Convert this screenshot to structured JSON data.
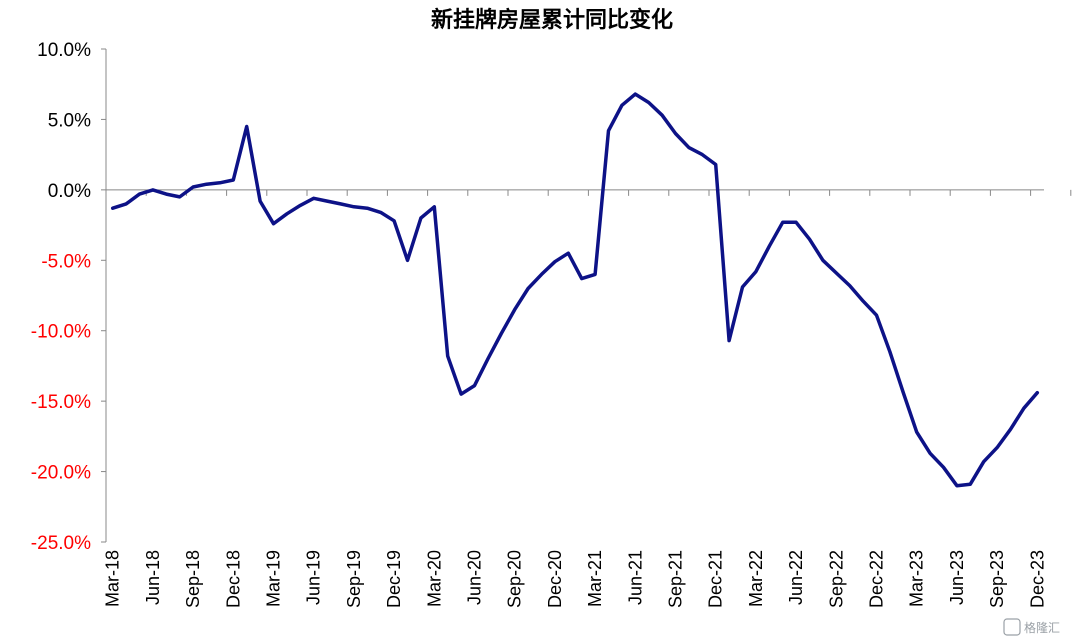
{
  "watermark": "格隆汇",
  "chart_data": {
    "type": "line",
    "title": "新挂牌房屋累计同比变化",
    "xlabel": "",
    "ylabel": "",
    "ylim": [
      -25,
      10
    ],
    "grid": false,
    "line_color": "#0d1287",
    "positive_tick_color": "#000000",
    "negative_tick_color": "#ff0000",
    "y_ticks": [
      {
        "value": 10,
        "label": "10.0%"
      },
      {
        "value": 5,
        "label": "5.0%"
      },
      {
        "value": 0,
        "label": "0.0%"
      },
      {
        "value": -5,
        "label": "-5.0%"
      },
      {
        "value": -10,
        "label": "-10.0%"
      },
      {
        "value": -15,
        "label": "-15.0%"
      },
      {
        "value": -20,
        "label": "-20.0%"
      },
      {
        "value": -25,
        "label": "-25.0%"
      }
    ],
    "x_tick_labels": [
      {
        "index": 0,
        "label": "Mar-18"
      },
      {
        "index": 3,
        "label": "Jun-18"
      },
      {
        "index": 6,
        "label": "Sep-18"
      },
      {
        "index": 9,
        "label": "Dec-18"
      },
      {
        "index": 12,
        "label": "Mar-19"
      },
      {
        "index": 15,
        "label": "Jun-19"
      },
      {
        "index": 18,
        "label": "Sep-19"
      },
      {
        "index": 21,
        "label": "Dec-19"
      },
      {
        "index": 24,
        "label": "Mar-20"
      },
      {
        "index": 27,
        "label": "Jun-20"
      },
      {
        "index": 30,
        "label": "Sep-20"
      },
      {
        "index": 33,
        "label": "Dec-20"
      },
      {
        "index": 36,
        "label": "Mar-21"
      },
      {
        "index": 39,
        "label": "Jun-21"
      },
      {
        "index": 42,
        "label": "Sep-21"
      },
      {
        "index": 45,
        "label": "Dec-21"
      },
      {
        "index": 48,
        "label": "Mar-22"
      },
      {
        "index": 51,
        "label": "Jun-22"
      },
      {
        "index": 54,
        "label": "Sep-22"
      },
      {
        "index": 57,
        "label": "Dec-22"
      },
      {
        "index": 60,
        "label": "Mar-23"
      },
      {
        "index": 63,
        "label": "Jun-23"
      },
      {
        "index": 66,
        "label": "Sep-23"
      },
      {
        "index": 69,
        "label": "Dec-23"
      }
    ],
    "series": [
      {
        "x": [
          "Mar-18",
          "Apr-18",
          "May-18",
          "Jun-18",
          "Jul-18",
          "Aug-18",
          "Sep-18",
          "Oct-18",
          "Nov-18",
          "Dec-18",
          "Jan-19",
          "Feb-19",
          "Mar-19",
          "Apr-19",
          "May-19",
          "Jun-19",
          "Jul-19",
          "Aug-19",
          "Sep-19",
          "Oct-19",
          "Nov-19",
          "Dec-19",
          "Jan-20",
          "Feb-20",
          "Mar-20",
          "Apr-20",
          "May-20",
          "Jun-20",
          "Jul-20",
          "Aug-20",
          "Sep-20",
          "Oct-20",
          "Nov-20",
          "Dec-20",
          "Jan-21",
          "Feb-21",
          "Mar-21",
          "Apr-21",
          "May-21",
          "Jun-21",
          "Jul-21",
          "Aug-21",
          "Sep-21",
          "Oct-21",
          "Nov-21",
          "Dec-21",
          "Jan-22",
          "Feb-22",
          "Mar-22",
          "Apr-22",
          "May-22",
          "Jun-22",
          "Jul-22",
          "Aug-22",
          "Sep-22",
          "Oct-22",
          "Nov-22",
          "Dec-22",
          "Jan-23",
          "Feb-23",
          "Mar-23",
          "Apr-23",
          "May-23",
          "Jun-23",
          "Jul-23",
          "Aug-23",
          "Sep-23",
          "Oct-23",
          "Nov-23",
          "Dec-23"
        ],
        "values": [
          -1.3,
          -1.0,
          -0.3,
          0.0,
          -0.3,
          -0.5,
          0.2,
          0.4,
          0.5,
          0.7,
          4.5,
          -0.8,
          -2.4,
          -1.7,
          -1.1,
          -0.6,
          -0.8,
          -1.0,
          -1.2,
          -1.3,
          -1.6,
          -2.2,
          -5.0,
          -2.0,
          -1.2,
          -11.8,
          -14.5,
          -13.9,
          -12.0,
          -10.2,
          -8.5,
          -7.0,
          -6.0,
          -5.1,
          -4.5,
          -6.3,
          -6.0,
          4.2,
          6.0,
          6.8,
          6.2,
          5.3,
          4.0,
          3.0,
          2.5,
          1.8,
          -10.7,
          -6.9,
          -5.8,
          -4.0,
          -2.3,
          -2.3,
          -3.5,
          -5.0,
          -5.9,
          -6.8,
          -7.9,
          -8.9,
          -11.5,
          -14.4,
          -17.2,
          -18.7,
          -19.7,
          -21.0,
          -20.9,
          -19.3,
          -18.3,
          -17.0,
          -15.5,
          -14.4
        ]
      }
    ]
  }
}
